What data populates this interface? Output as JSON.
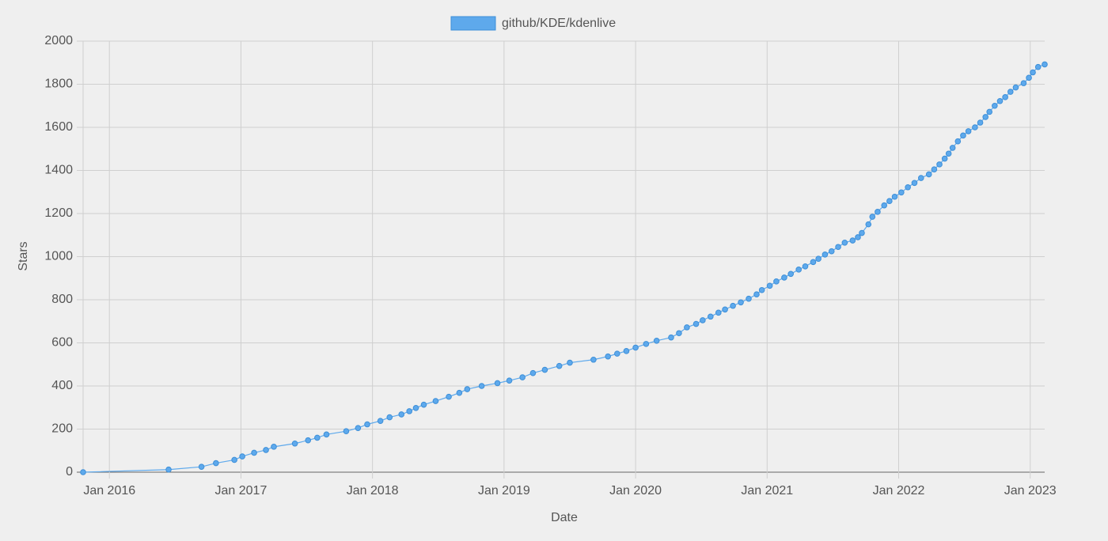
{
  "chart_data": {
    "type": "line",
    "x_label": "Date",
    "y_label": "Stars",
    "legend": "top",
    "grid": true,
    "x": [
      2015.8,
      2016.45,
      2016.7,
      2016.81,
      2016.95,
      2017.01,
      2017.1,
      2017.19,
      2017.25,
      2017.41,
      2017.51,
      2017.58,
      2017.65,
      2017.8,
      2017.89,
      2017.96,
      2018.06,
      2018.13,
      2018.22,
      2018.28,
      2018.33,
      2018.39,
      2018.48,
      2018.58,
      2018.66,
      2018.72,
      2018.83,
      2018.95,
      2019.04,
      2019.14,
      2019.22,
      2019.31,
      2019.42,
      2019.5,
      2019.68,
      2019.79,
      2019.86,
      2019.93,
      2020.0,
      2020.08,
      2020.16,
      2020.27,
      2020.33,
      2020.39,
      2020.46,
      2020.51,
      2020.57,
      2020.63,
      2020.68,
      2020.74,
      2020.8,
      2020.86,
      2020.92,
      2020.96,
      2021.02,
      2021.07,
      2021.13,
      2021.18,
      2021.24,
      2021.29,
      2021.35,
      2021.39,
      2021.44,
      2021.49,
      2021.54,
      2021.59,
      2021.65,
      2021.69,
      2021.72,
      2021.77,
      2021.8,
      2021.84,
      2021.89,
      2021.93,
      2021.97,
      2022.02,
      2022.07,
      2022.12,
      2022.17,
      2022.23,
      2022.27,
      2022.31,
      2022.35,
      2022.38,
      2022.41,
      2022.45,
      2022.49,
      2022.53,
      2022.58,
      2022.62,
      2022.66,
      2022.69,
      2022.73,
      2022.77,
      2022.81,
      2022.85,
      2022.89,
      2022.95,
      2022.99,
      2023.02,
      2023.06,
      2023.11
    ],
    "series": [
      {
        "name": "github/KDE/kdenlive",
        "color": "#5ea9ec",
        "values": [
          0,
          12,
          25,
          42,
          57,
          73,
          90,
          103,
          118,
          133,
          148,
          160,
          175,
          190,
          205,
          222,
          238,
          255,
          268,
          283,
          298,
          313,
          330,
          350,
          368,
          385,
          400,
          413,
          425,
          440,
          460,
          475,
          493,
          508,
          522,
          537,
          550,
          562,
          578,
          595,
          610,
          625,
          645,
          672,
          688,
          705,
          722,
          740,
          755,
          772,
          788,
          805,
          825,
          845,
          865,
          885,
          903,
          920,
          940,
          955,
          975,
          990,
          1010,
          1025,
          1045,
          1065,
          1075,
          1090,
          1110,
          1150,
          1185,
          1208,
          1238,
          1258,
          1278,
          1298,
          1322,
          1342,
          1365,
          1382,
          1405,
          1428,
          1455,
          1478,
          1505,
          1535,
          1562,
          1582,
          1600,
          1622,
          1648,
          1672,
          1700,
          1722,
          1740,
          1765,
          1785,
          1805,
          1830,
          1855,
          1880,
          1892
        ]
      }
    ],
    "xlim": [
      2015.8,
      2023.11
    ],
    "xticks": [
      {
        "value": 2016,
        "label": "Jan 2016"
      },
      {
        "value": 2017,
        "label": "Jan 2017"
      },
      {
        "value": 2018,
        "label": "Jan 2018"
      },
      {
        "value": 2019,
        "label": "Jan 2019"
      },
      {
        "value": 2020,
        "label": "Jan 2020"
      },
      {
        "value": 2021,
        "label": "Jan 2021"
      },
      {
        "value": 2022,
        "label": "Jan 2022"
      },
      {
        "value": 2023,
        "label": "Jan 2023"
      }
    ],
    "ylim": [
      0,
      2000
    ],
    "yticks": [
      0,
      200,
      400,
      600,
      800,
      1000,
      1200,
      1400,
      1600,
      1800,
      2000
    ]
  }
}
